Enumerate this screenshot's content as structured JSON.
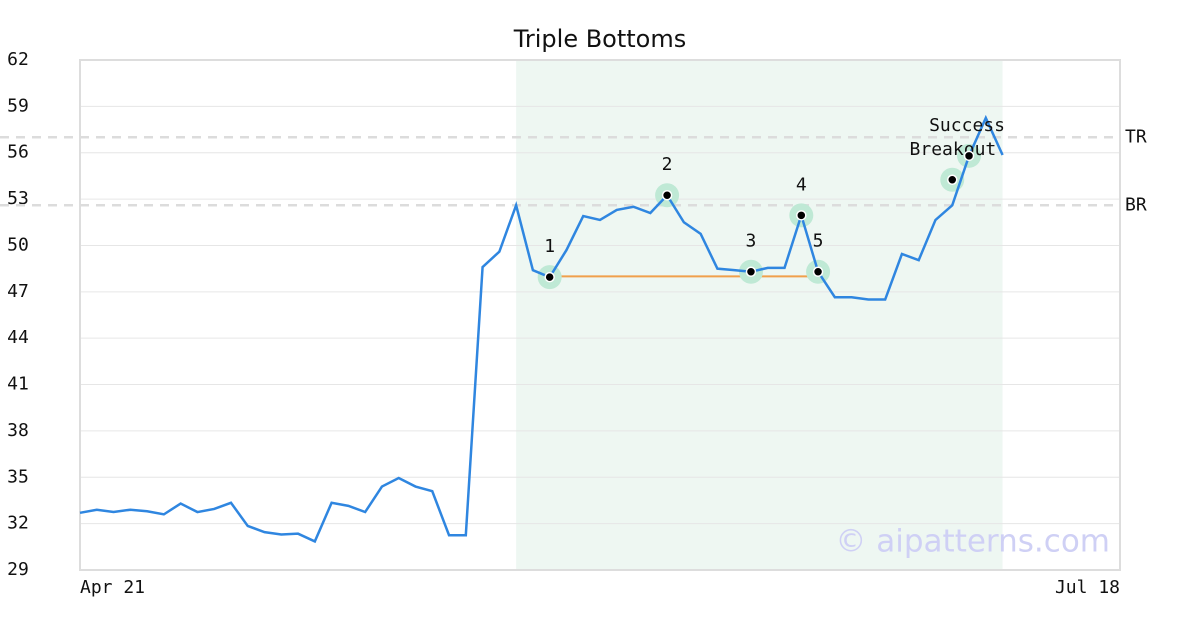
{
  "chart_data": {
    "type": "line",
    "title": "Triple Bottoms",
    "x": [
      0,
      1,
      2,
      3,
      4,
      5,
      6,
      7,
      8,
      9,
      10,
      11,
      12,
      13,
      14,
      15,
      16,
      17,
      18,
      19,
      20,
      21,
      22,
      23,
      24,
      25,
      26,
      27,
      28,
      29,
      30,
      31,
      32,
      33,
      34,
      35,
      36,
      37,
      38,
      39,
      40,
      41,
      42,
      43,
      44,
      45,
      46,
      47,
      48,
      49,
      50,
      51,
      52,
      53,
      54,
      55
    ],
    "values": [
      32.7,
      32.9,
      32.75,
      32.9,
      32.8,
      32.6,
      33.3,
      32.75,
      32.95,
      33.35,
      31.85,
      31.45,
      31.3,
      31.35,
      30.85,
      33.35,
      33.15,
      32.75,
      34.4,
      34.95,
      34.4,
      34.1,
      31.25,
      31.25,
      48.6,
      49.6,
      52.6,
      48.4,
      47.95,
      49.7,
      51.9,
      51.65,
      52.3,
      52.5,
      52.1,
      53.25,
      51.5,
      50.75,
      48.5,
      48.4,
      48.3,
      48.55,
      48.55,
      51.95,
      48.3,
      46.65,
      46.65,
      46.5,
      46.5,
      49.45,
      49.05,
      51.65,
      52.6,
      55.8,
      58.25,
      55.85
    ],
    "color": "#2f86e0",
    "xlim": [
      0,
      62
    ],
    "xticks": [
      {
        "value": 0,
        "label": "Apr 21"
      },
      {
        "value": 62,
        "label": "Jul 18"
      }
    ],
    "ylim": [
      29,
      62
    ],
    "yticks": [
      29,
      32,
      35,
      38,
      41,
      44,
      47,
      50,
      53,
      56,
      59,
      62
    ],
    "grid": true,
    "highlight": {
      "x": [
        26,
        55
      ],
      "color": "#eef7f2"
    },
    "support": {
      "x": [
        28,
        44
      ],
      "value": 48.0,
      "color": "#f0a04b"
    },
    "reference_lines": [
      {
        "label": "TR",
        "value": 57.0
      },
      {
        "label": "BR",
        "value": 52.6
      }
    ],
    "annotations": [
      {
        "label": "1",
        "x": 28,
        "y": 47.95
      },
      {
        "label": "2",
        "x": 35,
        "y": 53.25
      },
      {
        "label": "3",
        "x": 40,
        "y": 48.3
      },
      {
        "label": "4",
        "x": 43,
        "y": 51.95
      },
      {
        "label": "5",
        "x": 44,
        "y": 48.3
      },
      {
        "label": "Breakout",
        "x": 52,
        "y": 54.25
      },
      {
        "label": "Success",
        "x": 53,
        "y": 55.8
      }
    ],
    "watermark": "© aipatterns.com"
  }
}
